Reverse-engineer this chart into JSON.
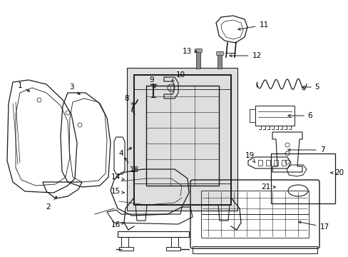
{
  "background_color": "#ffffff",
  "line_color": "#1a1a1a",
  "label_color": "#000000",
  "font_size": 7.5,
  "figsize": [
    4.89,
    3.6
  ],
  "dpi": 100
}
